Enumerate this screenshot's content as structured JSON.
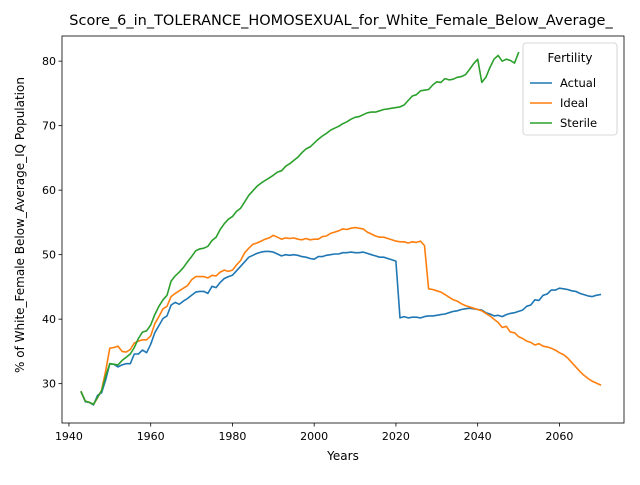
{
  "chart_data": {
    "type": "line",
    "title": "Score_6_in_TOLERANCE_HOMOSEXUAL_for_White_Female_Below_Average_",
    "xlabel": "Years",
    "ylabel": "% of White_Female Below_Average_IQ Population",
    "xlim": [
      1938.3,
      2075.8
    ],
    "ylim": [
      23.9,
      83.9
    ],
    "xticks": [
      1940,
      1960,
      1980,
      2000,
      2020,
      2040,
      2060
    ],
    "yticks": [
      30,
      40,
      50,
      60,
      70,
      80
    ],
    "grid": false,
    "legend": {
      "title": "Fertility",
      "position": "top-right"
    },
    "series": [
      {
        "name": "Actual",
        "color": "#1f77b4",
        "x": [
          1943,
          1944,
          1945,
          1946,
          1947,
          1948,
          1949,
          1950,
          1951,
          1952,
          1953,
          1954,
          1955,
          1956,
          1957,
          1958,
          1959,
          1960,
          1961,
          1962,
          1963,
          1964,
          1965,
          1966,
          1967,
          1968,
          1969,
          1970,
          1971,
          1972,
          1973,
          1974,
          1975,
          1976,
          1977,
          1978,
          1979,
          1980,
          1981,
          1982,
          1983,
          1984,
          1985,
          1986,
          1987,
          1988,
          1989,
          1990,
          1991,
          1992,
          1993,
          1994,
          1995,
          1996,
          1997,
          1998,
          1999,
          2000,
          2001,
          2002,
          2003,
          2004,
          2005,
          2006,
          2007,
          2008,
          2009,
          2010,
          2011,
          2012,
          2013,
          2014,
          2015,
          2016,
          2017,
          2018,
          2019,
          2020,
          2021,
          2022,
          2023,
          2024,
          2025,
          2026,
          2027,
          2028,
          2029,
          2030,
          2031,
          2032,
          2033,
          2034,
          2035,
          2036,
          2037,
          2038,
          2039,
          2040,
          2041,
          2042,
          2043,
          2044,
          2045,
          2046,
          2047,
          2048,
          2049,
          2050,
          2051,
          2052,
          2053,
          2054,
          2055,
          2056,
          2057,
          2058,
          2059,
          2060,
          2061,
          2062,
          2063,
          2064,
          2065,
          2066,
          2067,
          2068,
          2069,
          2070
        ],
        "y": [
          28.7,
          27.2,
          27.1,
          26.7,
          28.2,
          28.6,
          30.6,
          33.1,
          33.0,
          32.6,
          32.9,
          33.1,
          33.1,
          34.6,
          34.6,
          35.2,
          34.8,
          36.1,
          37.9,
          39.0,
          40.1,
          40.5,
          42.2,
          42.6,
          42.3,
          42.8,
          43.2,
          43.7,
          44.2,
          44.3,
          44.3,
          44.0,
          45.1,
          44.9,
          45.7,
          46.3,
          46.6,
          46.8,
          47.5,
          48.2,
          48.9,
          49.6,
          49.9,
          50.2,
          50.4,
          50.5,
          50.5,
          50.4,
          50.1,
          49.8,
          50.0,
          49.9,
          50.0,
          49.9,
          49.7,
          49.6,
          49.4,
          49.3,
          49.7,
          49.7,
          49.9,
          50.0,
          50.1,
          50.1,
          50.3,
          50.3,
          50.4,
          50.3,
          50.3,
          50.4,
          50.2,
          50.0,
          49.8,
          49.6,
          49.6,
          49.4,
          49.2,
          49.0,
          40.2,
          40.4,
          40.2,
          40.3,
          40.3,
          40.2,
          40.4,
          40.5,
          40.5,
          40.6,
          40.7,
          40.8,
          41.0,
          41.2,
          41.3,
          41.5,
          41.6,
          41.7,
          41.6,
          41.5,
          41.4,
          41.0,
          40.8,
          40.5,
          40.6,
          40.4,
          40.7,
          40.9,
          41.0,
          41.2,
          41.4,
          42.0,
          42.2,
          43.0,
          42.9,
          43.7,
          43.9,
          44.5,
          44.5,
          44.8,
          44.7,
          44.6,
          44.4,
          44.3,
          44.0,
          43.8,
          43.6,
          43.5,
          43.7,
          43.8
        ],
        "comment_x_2040_2070_shape": "approximate"
      },
      {
        "name": "Ideal",
        "color": "#ff7f0e",
        "x": [
          1943,
          1944,
          1945,
          1946,
          1947,
          1948,
          1949,
          1950,
          1951,
          1952,
          1953,
          1954,
          1955,
          1956,
          1957,
          1958,
          1959,
          1960,
          1961,
          1962,
          1963,
          1964,
          1965,
          1966,
          1967,
          1968,
          1969,
          1970,
          1971,
          1972,
          1973,
          1974,
          1975,
          1976,
          1977,
          1978,
          1979,
          1980,
          1981,
          1982,
          1983,
          1984,
          1985,
          1986,
          1987,
          1988,
          1989,
          1990,
          1991,
          1992,
          1993,
          1994,
          1995,
          1996,
          1997,
          1998,
          1999,
          2000,
          2001,
          2002,
          2003,
          2004,
          2005,
          2006,
          2007,
          2008,
          2009,
          2010,
          2011,
          2012,
          2013,
          2014,
          2015,
          2016,
          2017,
          2018,
          2019,
          2020,
          2021,
          2022,
          2023,
          2024,
          2025,
          2026,
          2027,
          2028,
          2029,
          2030,
          2031,
          2032,
          2033,
          2034,
          2035,
          2036,
          2037,
          2038,
          2039,
          2040,
          2041,
          2042,
          2043,
          2044,
          2045,
          2046,
          2047,
          2048,
          2049,
          2050,
          2051,
          2052,
          2053,
          2054,
          2055,
          2056,
          2057,
          2058,
          2059,
          2060,
          2061,
          2062,
          2063,
          2064,
          2065,
          2066,
          2067,
          2068,
          2069,
          2070
        ],
        "y": [
          28.7,
          27.3,
          27.1,
          26.8,
          27.8,
          29.0,
          32.0,
          35.5,
          35.6,
          35.8,
          35.0,
          34.9,
          35.3,
          36.3,
          36.6,
          36.8,
          36.8,
          37.4,
          39.3,
          40.4,
          41.6,
          42.0,
          43.5,
          44.0,
          44.4,
          44.8,
          45.2,
          46.1,
          46.6,
          46.6,
          46.6,
          46.4,
          46.8,
          46.7,
          47.3,
          47.6,
          47.4,
          47.6,
          48.4,
          49.1,
          50.3,
          51.0,
          51.6,
          51.8,
          52.1,
          52.4,
          52.6,
          53.0,
          52.7,
          52.4,
          52.6,
          52.5,
          52.6,
          52.4,
          52.3,
          52.5,
          52.3,
          52.4,
          52.4,
          52.8,
          52.9,
          53.3,
          53.5,
          53.7,
          54.0,
          53.9,
          54.1,
          54.2,
          54.1,
          54.0,
          53.5,
          53.2,
          52.9,
          52.7,
          52.7,
          52.5,
          52.3,
          52.1,
          52.0,
          52.0,
          51.8,
          52.0,
          51.9,
          52.1,
          51.4,
          44.7,
          44.6,
          44.4,
          44.2,
          43.8,
          43.4,
          43.0,
          42.8,
          42.4,
          42.1,
          41.9,
          41.7,
          41.5,
          41.3,
          40.9,
          40.5,
          40.0,
          39.5,
          38.7,
          38.9,
          38.0,
          37.9,
          37.3,
          37.0,
          36.6,
          36.4,
          36.0,
          36.2,
          35.8,
          35.7,
          35.5,
          35.2,
          34.8,
          34.5,
          34.0,
          33.3,
          32.6,
          31.9,
          31.3,
          30.8,
          30.4,
          30.1,
          29.8
        ],
        "comment_x_2040_2070_shape": "approximate"
      },
      {
        "name": "Sterile",
        "color": "#2ca02c",
        "x": [
          1943,
          1944,
          1945,
          1946,
          1947,
          1948,
          1949,
          1950,
          1951,
          1952,
          1953,
          1954,
          1955,
          1956,
          1957,
          1958,
          1959,
          1960,
          1961,
          1962,
          1963,
          1964,
          1965,
          1966,
          1967,
          1968,
          1969,
          1970,
          1971,
          1972,
          1973,
          1974,
          1975,
          1976,
          1977,
          1978,
          1979,
          1980,
          1981,
          1982,
          1983,
          1984,
          1985,
          1986,
          1987,
          1988,
          1989,
          1990,
          1991,
          1992,
          1993,
          1994,
          1995,
          1996,
          1997,
          1998,
          1999,
          2000,
          2001,
          2002,
          2003,
          2004,
          2005,
          2006,
          2007,
          2008,
          2009,
          2010,
          2011,
          2012,
          2013,
          2014,
          2015,
          2016,
          2017,
          2018,
          2019,
          2020,
          2021,
          2022,
          2023,
          2024,
          2025,
          2026,
          2027,
          2028,
          2029,
          2030,
          2031,
          2032,
          2033,
          2034,
          2035,
          2036,
          2037,
          2038,
          2039,
          2040,
          2041,
          2042,
          2043,
          2044,
          2045,
          2046,
          2047,
          2048,
          2049,
          2050
        ],
        "y": [
          28.7,
          27.3,
          27.1,
          26.8,
          27.9,
          28.9,
          31.2,
          33.1,
          33.0,
          32.9,
          33.6,
          34.1,
          34.6,
          35.6,
          37.0,
          38.0,
          38.2,
          39.1,
          40.7,
          42.0,
          43.0,
          43.7,
          45.9,
          46.7,
          47.3,
          48.0,
          48.9,
          49.7,
          50.6,
          50.9,
          51.0,
          51.3,
          52.2,
          52.7,
          53.9,
          54.8,
          55.5,
          55.9,
          56.7,
          57.2,
          58.2,
          59.2,
          59.9,
          60.6,
          61.1,
          61.5,
          61.9,
          62.3,
          62.8,
          63.0,
          63.7,
          64.1,
          64.6,
          65.1,
          65.8,
          66.4,
          66.7,
          67.3,
          67.9,
          68.4,
          68.8,
          69.3,
          69.6,
          69.9,
          70.3,
          70.6,
          71.0,
          71.3,
          71.4,
          71.7,
          72.0,
          72.1,
          72.1,
          72.3,
          72.5,
          72.6,
          72.7,
          72.8,
          72.9,
          73.2,
          73.9,
          74.6,
          74.8,
          75.4,
          75.5,
          75.6,
          76.3,
          76.8,
          76.7,
          77.3,
          77.1,
          77.2,
          77.5,
          77.6,
          77.9,
          78.7,
          79.6,
          80.3,
          76.7,
          77.5,
          79.0,
          80.3,
          80.9,
          80.0,
          80.3,
          80.1,
          79.7,
          81.3
        ]
      }
    ]
  }
}
